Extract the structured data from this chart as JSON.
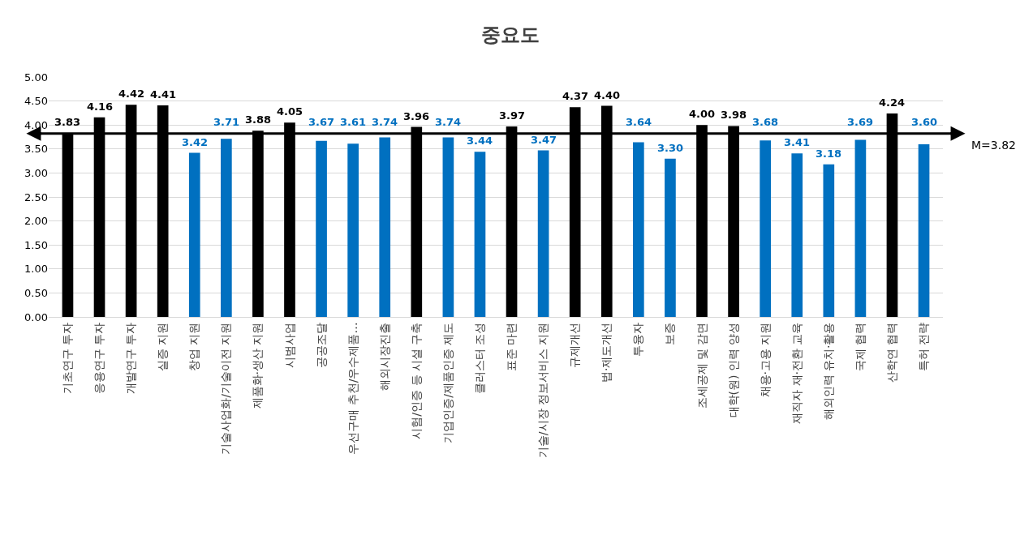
{
  "chart_data": {
    "type": "bar",
    "title": "중요도",
    "categories": [
      "기초연구 투자",
      "응용연구 투자",
      "개발연구 투자",
      "실증 지원",
      "창업 지원",
      "기술사업화/기술이전 지원",
      "제품화·생산 지원",
      "시범사업",
      "공공조달",
      "우선구매 추천/우수제품…",
      "해외시장진출",
      "시험/인증 등 시설 구축",
      "기업인증/제품인증 제도",
      "클러스터 조성",
      "표준 마련",
      "기술/시장 정보서비스 지원",
      "규제개선",
      "법·제도개선",
      "투융자",
      "보증",
      "조세공제 및 감면",
      "대학(원) 인력 양성",
      "채용·고용 지원",
      "재직자 재·전환 교육",
      "해외인력 유치·활용",
      "국제 협력",
      "산학연 협력",
      "특허 전략"
    ],
    "values": [
      3.83,
      4.16,
      4.42,
      4.41,
      3.42,
      3.71,
      3.88,
      4.05,
      3.67,
      3.61,
      3.74,
      3.96,
      3.74,
      3.44,
      3.97,
      3.47,
      4.37,
      4.4,
      3.64,
      3.3,
      4.0,
      3.98,
      3.68,
      3.41,
      3.18,
      3.69,
      4.24,
      3.6
    ],
    "value_labels": [
      "3.83",
      "4.16",
      "4.42",
      "4.41",
      "3.42",
      "3.71",
      "3.88",
      "4.05",
      "3.67",
      "3.61",
      "3.74",
      "3.96",
      "3.74",
      "3.44",
      "3.97",
      "3.47",
      "4.37",
      "4.40",
      "3.64",
      "3.30",
      "4.00",
      "3.98",
      "3.68",
      "3.41",
      "3.18",
      "3.69",
      "4.24",
      "3.60"
    ],
    "colors": [
      "#000000",
      "#000000",
      "#000000",
      "#000000",
      "#0070c0",
      "#0070c0",
      "#000000",
      "#000000",
      "#0070c0",
      "#0070c0",
      "#0070c0",
      "#000000",
      "#0070c0",
      "#0070c0",
      "#000000",
      "#0070c0",
      "#000000",
      "#000000",
      "#0070c0",
      "#0070c0",
      "#000000",
      "#000000",
      "#0070c0",
      "#0070c0",
      "#0070c0",
      "#0070c0",
      "#000000",
      "#0070c0"
    ],
    "ylim": [
      0,
      5
    ],
    "yticks": [
      {
        "value": 0,
        "label": "0.00"
      },
      {
        "value": 0.5,
        "label": "0.50"
      },
      {
        "value": 1,
        "label": "1.00"
      },
      {
        "value": 1.5,
        "label": "1.50"
      },
      {
        "value": 2,
        "label": "2.00"
      },
      {
        "value": 2.5,
        "label": "2.50"
      },
      {
        "value": 3,
        "label": "3.00"
      },
      {
        "value": 3.5,
        "label": "3.50"
      },
      {
        "value": 4,
        "label": "4.00"
      },
      {
        "value": 4.5,
        "label": "4.50"
      },
      {
        "value": 5,
        "label": "5.00"
      }
    ],
    "grid": "y",
    "ref_lines": [
      {
        "axis": "y",
        "value": 3.82,
        "label": "M=3.82",
        "color": "#000000"
      }
    ]
  }
}
